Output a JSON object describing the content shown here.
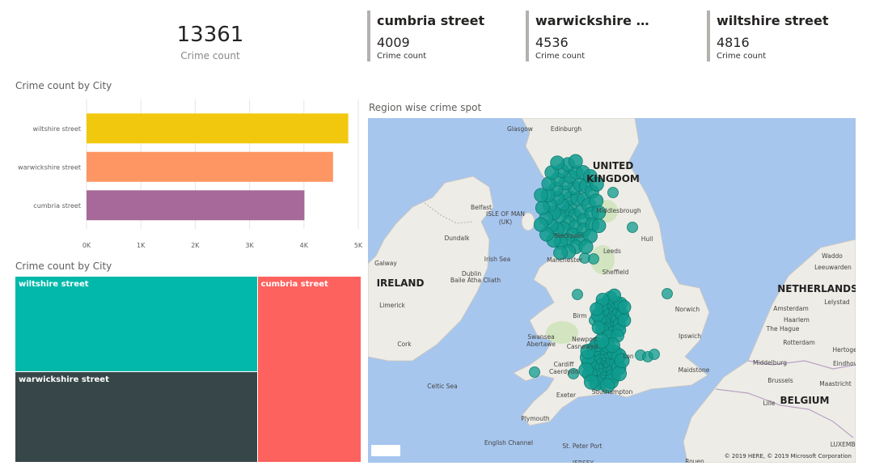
{
  "total_card": {
    "value": "13361",
    "label": "Crime count"
  },
  "kpis": [
    {
      "title": "cumbria street",
      "value": "4009",
      "label": "Crime count"
    },
    {
      "title": "warwickshire st...",
      "value": "4536",
      "label": "Crime count"
    },
    {
      "title": "wiltshire street",
      "value": "4816",
      "label": "Crime count"
    }
  ],
  "bar_title": "Crime count by City",
  "treemap_title": "Crime count by City",
  "map_title": "Region wise crime spot",
  "map_attribution": "© 2019 HERE, © 2019 Microsoft Corporation",
  "map_labels": [
    "Glasgow",
    "Edinburgh",
    "UNITED",
    "KINGDOM",
    "Belfast",
    "ISLE OF MAN",
    "(UK)",
    "Middlesbrough",
    "Blackpool",
    "Hull",
    "Dundalk",
    "Leeds",
    "Galway",
    "Irish Sea",
    "Manchester",
    "Waddo",
    "Leeuwarden",
    "IRELAND",
    "Dublin",
    "Baile Átha Cliath",
    "Sheffield",
    "NETHERLANDS",
    "Limerick",
    "Norwich",
    "Amsterdam",
    "Lelystad",
    "Haarlem",
    "Birm",
    "The Hague",
    "Swansea",
    "Abertawe",
    "Newport",
    "Casnewyd",
    "Ipswich",
    "Cork",
    "Rotterdam",
    "Hertogen",
    "Lon",
    "Middelburg",
    "Cardiff",
    "Caerdydd",
    "Maidstone",
    "Eindhov",
    "Celtic Sea",
    "Brussels",
    "Maastricht",
    "Exeter",
    "Southampton",
    "Lille",
    "BELGIUM",
    "Plymouth",
    "English Channel",
    "St. Peter Port",
    "LUXEMBO",
    "JERSEY",
    "Rouen"
  ],
  "chart_data": [
    {
      "type": "bar",
      "orientation": "horizontal",
      "title": "Crime count by City",
      "categories": [
        "wiltshire street",
        "warwickshire street",
        "cumbria street"
      ],
      "values": [
        4816,
        4536,
        4009
      ],
      "colors": [
        "#f2c80f",
        "#fd9662",
        "#a66999"
      ],
      "xlim": [
        0,
        5000
      ],
      "xticks": [
        "0K",
        "1K",
        "2K",
        "3K",
        "4K",
        "5K"
      ],
      "grid": true
    },
    {
      "type": "treemap",
      "title": "Crime count by City",
      "categories": [
        "wiltshire street",
        "cumbria street",
        "warwickshire street"
      ],
      "values": [
        4816,
        4009,
        4536
      ],
      "colors": [
        "#01b8aa",
        "#fd625e",
        "#374649"
      ]
    }
  ],
  "colors": {
    "map_water": "#a7c6ee",
    "map_land": "#eeece6",
    "bubble": "#0f9b8e"
  }
}
